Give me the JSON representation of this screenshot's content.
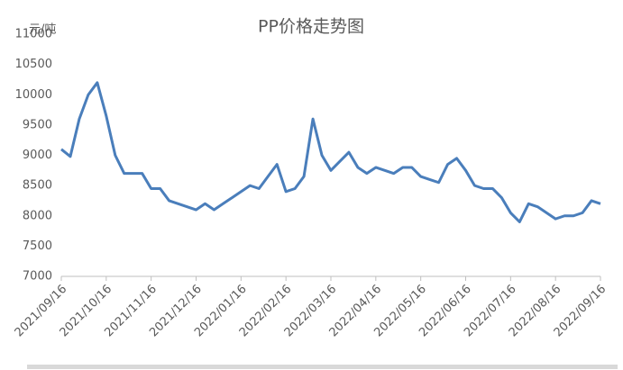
{
  "chart_data": {
    "type": "line",
    "title": "PP价格走势图",
    "y_label": "元/吨",
    "categories": [
      "2021/09/16",
      null,
      null,
      null,
      null,
      "2021/10/16",
      null,
      null,
      null,
      null,
      "2021/11/16",
      null,
      null,
      null,
      null,
      "2021/12/16",
      null,
      null,
      null,
      null,
      "2022/01/16",
      null,
      null,
      null,
      null,
      "2022/02/16",
      null,
      null,
      null,
      null,
      "2022/03/16",
      null,
      null,
      null,
      null,
      "2022/04/16",
      null,
      null,
      null,
      null,
      "2022/05/16",
      null,
      null,
      null,
      null,
      "2022/06/16",
      null,
      null,
      null,
      null,
      "2022/07/16",
      null,
      null,
      null,
      null,
      "2022/08/16",
      null,
      null,
      null,
      null,
      "2022/09/16"
    ],
    "series": [
      {
        "name": "PP",
        "color": "#4a7ebb",
        "values": [
          9100,
          8980,
          9600,
          10000,
          10200,
          9650,
          9000,
          8700,
          8700,
          8700,
          8450,
          8450,
          8250,
          8200,
          8150,
          8100,
          8200,
          8100,
          8200,
          8300,
          8400,
          8500,
          8450,
          8650,
          8850,
          8400,
          8450,
          8650,
          9600,
          9000,
          8750,
          8900,
          9050,
          8800,
          8700,
          8800,
          8750,
          8700,
          8800,
          8800,
          8650,
          8600,
          8550,
          8850,
          8950,
          8750,
          8500,
          8450,
          8450,
          8300,
          8050,
          7900,
          8200,
          8150,
          8050,
          7950,
          8000,
          8000,
          8050,
          8250,
          8200
        ]
      }
    ],
    "ylim": [
      7000,
      11000
    ],
    "yticks": [
      7000,
      7500,
      8000,
      8500,
      9000,
      9500,
      10000,
      10500,
      11000
    ],
    "grid": false
  }
}
